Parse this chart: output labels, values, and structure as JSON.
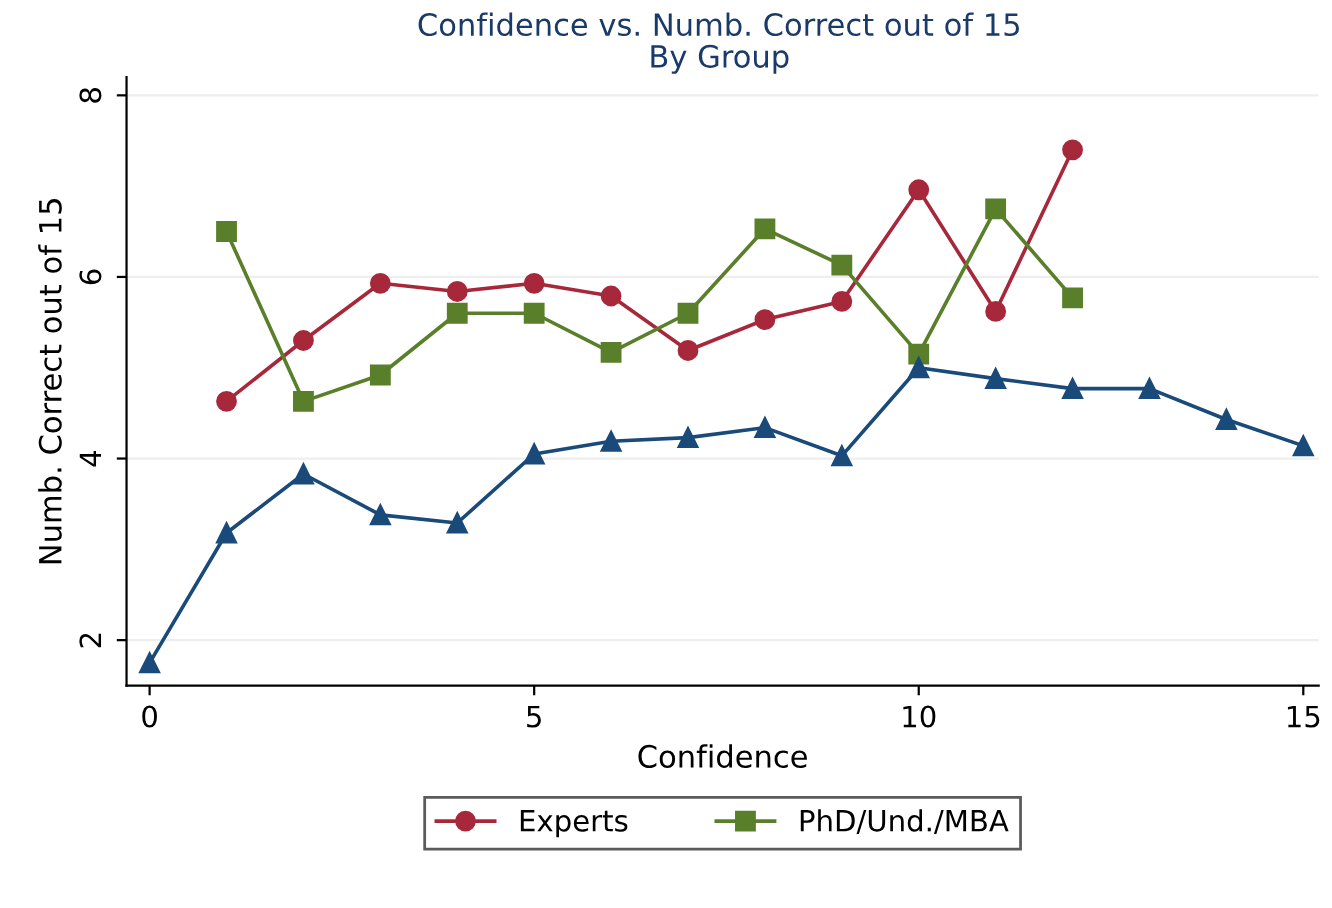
{
  "chart_data": {
    "type": "line",
    "title": "Confidence vs. Numb. Correct out of 15",
    "subtitle": "By Group",
    "xlabel": "Confidence",
    "ylabel": "Numb. Correct out of 15",
    "xlim": [
      -0.3,
      15.2
    ],
    "ylim": [
      1.5,
      8.2
    ],
    "xticks": [
      0,
      5,
      10,
      15
    ],
    "yticks": [
      2,
      4,
      6,
      8
    ],
    "grid": "y",
    "legend": "bottom",
    "series": [
      {
        "name": "Experts",
        "color": "#a6283a",
        "marker": "circle",
        "x": [
          1,
          2,
          3,
          4,
          5,
          6,
          7,
          8,
          9,
          10,
          11,
          12
        ],
        "values": [
          4.63,
          5.3,
          5.93,
          5.84,
          5.93,
          5.79,
          5.19,
          5.53,
          5.73,
          6.96,
          5.62,
          7.4
        ]
      },
      {
        "name": "PhD/Und./MBA",
        "color": "#5a7f2b",
        "marker": "square",
        "x": [
          1,
          2,
          3,
          4,
          5,
          6,
          7,
          8,
          9,
          10,
          11,
          12
        ],
        "values": [
          6.5,
          4.63,
          4.92,
          5.6,
          5.6,
          5.17,
          5.6,
          6.53,
          6.13,
          5.15,
          6.75,
          5.77
        ]
      },
      {
        "color": "#1a4a7a",
        "marker": "triangle",
        "x": [
          0,
          1,
          2,
          3,
          4,
          5,
          6,
          7,
          8,
          9,
          10,
          11,
          12,
          13,
          14,
          15
        ],
        "values": [
          1.75,
          3.18,
          3.83,
          3.38,
          3.29,
          4.05,
          4.19,
          4.23,
          4.34,
          4.03,
          5.0,
          4.88,
          4.77,
          4.77,
          4.43,
          4.14
        ]
      }
    ]
  }
}
